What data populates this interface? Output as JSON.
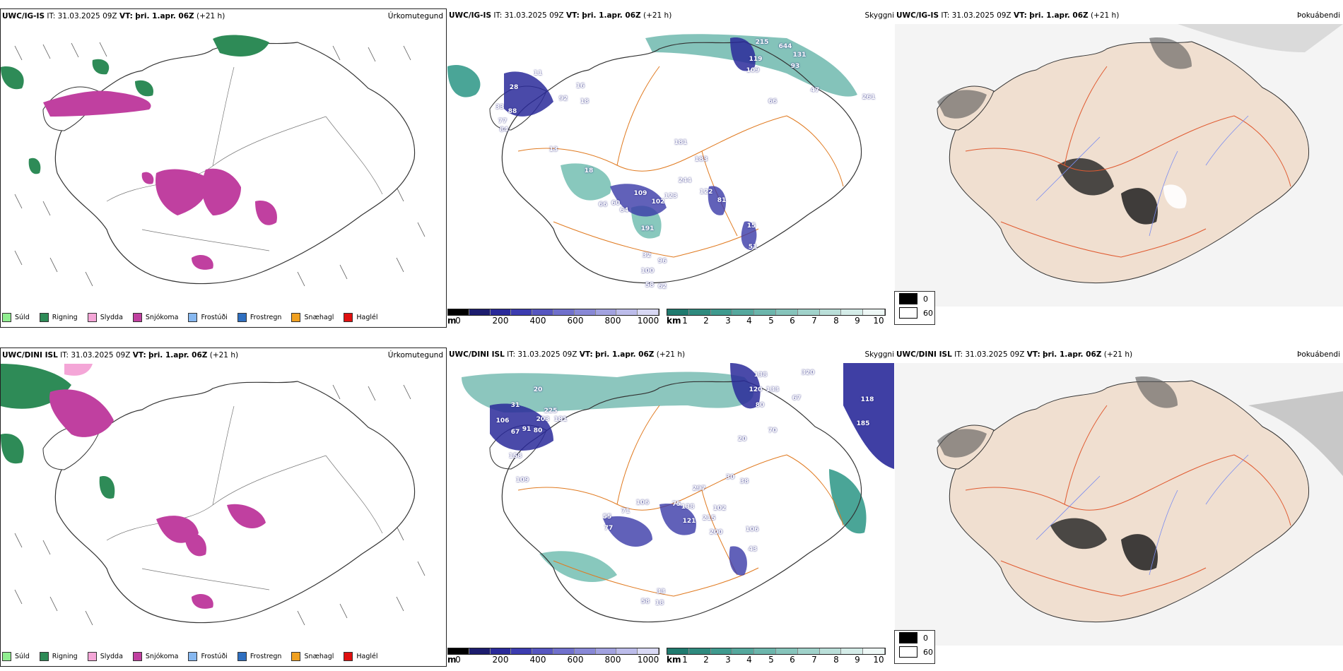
{
  "rows": [
    {
      "model": "UWC/IG-IS",
      "it_label": "IT:",
      "it_value": "31.03.2025 09Z",
      "vt_label": "VT:",
      "vt_value": "þri. 1.apr. 06Z",
      "lead": "(+21 h)",
      "precip_title": "Úrkomutegund",
      "cloud_title": "Skyggni",
      "fog_title": "Þokuábendi",
      "cloud_labels": [
        "215",
        "644",
        "131",
        "119",
        "93",
        "109",
        "66",
        "261",
        "28",
        "33",
        "88",
        "77",
        "84",
        "92",
        "11",
        "18",
        "13",
        "18",
        "183",
        "181",
        "244",
        "102",
        "109",
        "123",
        "122",
        "60",
        "64",
        "66",
        "81",
        "191",
        "15",
        "51",
        "32",
        "96",
        "100",
        "58",
        "62",
        "16",
        "47"
      ]
    },
    {
      "model": "UWC/DINI ISL",
      "it_label": "IT:",
      "it_value": "31.03.2025 09Z",
      "vt_label": "VT:",
      "vt_value": "þri. 1.apr. 06Z",
      "lead": "(+21 h)",
      "precip_title": "Úrkomutegund",
      "cloud_title": "Skyggni",
      "fog_title": "Þokuábendi",
      "cloud_labels": [
        "138",
        "320",
        "120",
        "133",
        "67",
        "80",
        "118",
        "185",
        "70",
        "20",
        "31",
        "20",
        "225",
        "203",
        "181",
        "91",
        "80",
        "67",
        "106",
        "158",
        "109",
        "38",
        "297",
        "106",
        "71",
        "75",
        "55",
        "77",
        "102",
        "215",
        "200",
        "106",
        "43",
        "58",
        "33",
        "18",
        "138",
        "121",
        "30"
      ]
    }
  ],
  "precip_legend": [
    {
      "label": "Súld",
      "color": "#90ee90"
    },
    {
      "label": "Rigning",
      "color": "#2e8b57"
    },
    {
      "label": "Slydda",
      "color": "#f4a6d7"
    },
    {
      "label": "Snjókoma",
      "color": "#c040a0"
    },
    {
      "label": "Frostúði",
      "color": "#87b8f0"
    },
    {
      "label": "Frostregn",
      "color": "#2f6fc0"
    },
    {
      "label": "Snæhagl",
      "color": "#f0a020"
    },
    {
      "label": "Haglél",
      "color": "#e01010"
    }
  ],
  "cloudbase_bar": {
    "unit": "m",
    "ticks": [
      "0",
      "200",
      "400",
      "600",
      "800",
      "1000"
    ]
  },
  "visibility_bar": {
    "unit": "km",
    "ticks": [
      "1",
      "2",
      "3",
      "4",
      "5",
      "6",
      "7",
      "8",
      "9",
      "10"
    ]
  },
  "fog_legend": {
    "dark": "0",
    "light": "60"
  },
  "colors": {
    "snow": "#c040a0",
    "rain": "#2e8b57",
    "cloudbase": "#2a2a9a",
    "visibility": "#3a9a8a",
    "roads": "#e07a20",
    "coast": "#333333",
    "terrain": "#f0dfd0",
    "fog_dark": "#202020"
  }
}
